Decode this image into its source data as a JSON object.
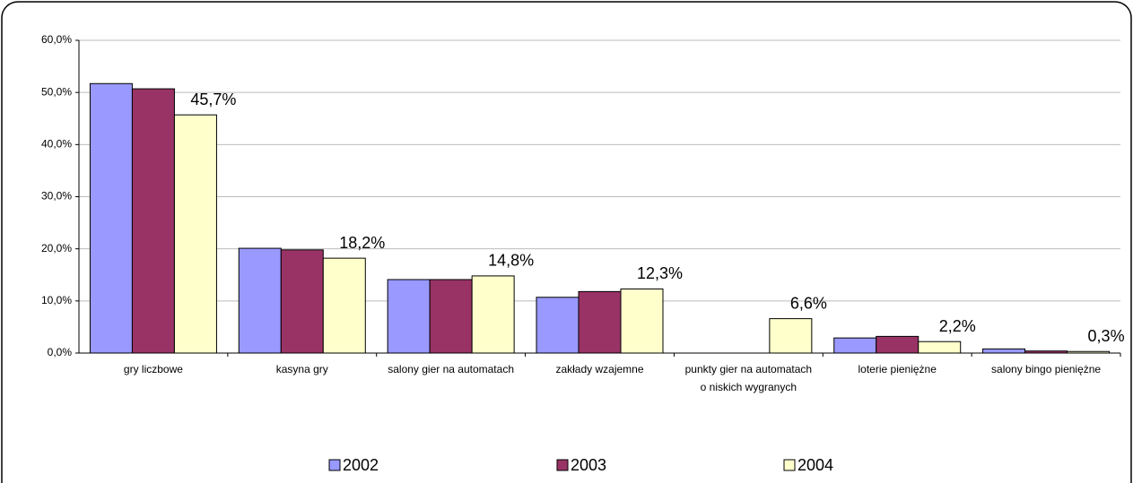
{
  "chart_data": {
    "type": "bar",
    "categories": [
      "gry liczbowe",
      "kasyna gry",
      "salony gier na automatach",
      "zakłady wzajemne",
      "punkty gier na automatach o niskich wygranych",
      "loterie pieniężne",
      "salony bingo pieniężne"
    ],
    "series": [
      {
        "name": "2002",
        "color": "#9999ff",
        "values": [
          51.7,
          20.1,
          14.1,
          10.7,
          null,
          2.9,
          0.8
        ]
      },
      {
        "name": "2003",
        "color": "#993366",
        "values": [
          50.7,
          19.8,
          14.1,
          11.8,
          null,
          3.2,
          0.4
        ]
      },
      {
        "name": "2004",
        "color": "#ffffcc",
        "values": [
          45.7,
          18.2,
          14.8,
          12.3,
          6.6,
          2.2,
          0.3
        ],
        "value_labels": [
          "45,7%",
          "18,2%",
          "14,8%",
          "12,3%",
          "6,6%",
          "2,2%",
          "0,3%"
        ]
      }
    ],
    "ylim": [
      0,
      60
    ],
    "yticks": [
      {
        "value": 0,
        "label": "0,0%"
      },
      {
        "value": 10,
        "label": "10,0%"
      },
      {
        "value": 20,
        "label": "20,0%"
      },
      {
        "value": 30,
        "label": "30,0%"
      },
      {
        "value": 40,
        "label": "40,0%"
      },
      {
        "value": 50,
        "label": "50,0%"
      },
      {
        "value": 60,
        "label": "60,0%"
      }
    ],
    "grid": true,
    "legend": "bottom"
  }
}
